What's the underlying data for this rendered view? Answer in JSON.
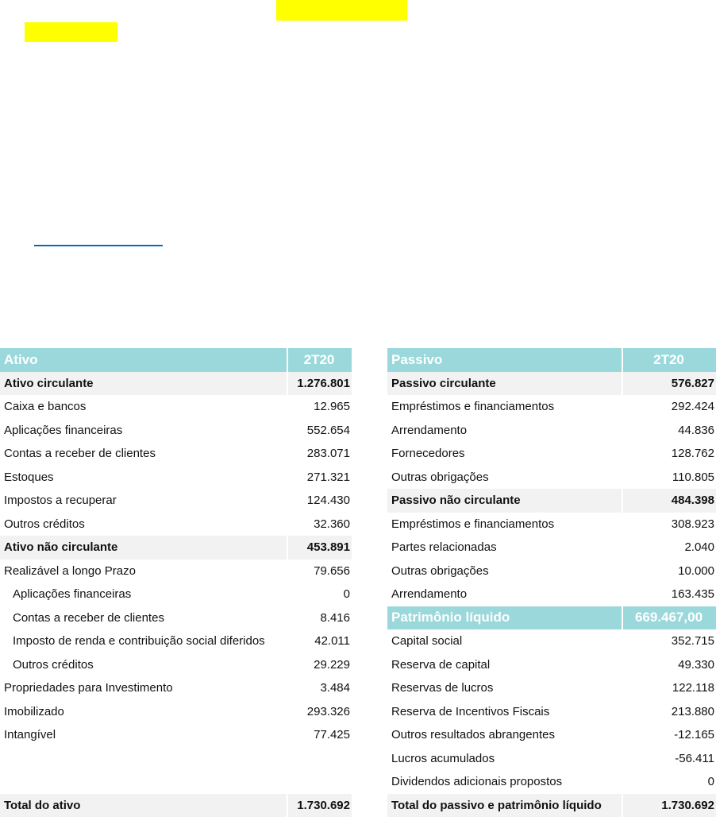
{
  "colors": {
    "header": "#9ad8db",
    "subtotal": "#f2f2f2",
    "highlight": "#ffff00",
    "link": "#0a6ab4"
  },
  "assets": {
    "header": {
      "label": "Ativo",
      "period": "2T20"
    },
    "rows": [
      {
        "label": "Ativo circulante",
        "value": "1.276.801",
        "type": "sub"
      },
      {
        "label": "Caixa e bancos",
        "value": "12.965",
        "type": "item"
      },
      {
        "label": "Aplicações financeiras",
        "value": "552.654",
        "type": "item"
      },
      {
        "label": "Contas a receber de clientes",
        "value": "283.071",
        "type": "item"
      },
      {
        "label": "Estoques",
        "value": "271.321",
        "type": "item"
      },
      {
        "label": "Impostos a recuperar",
        "value": "124.430",
        "type": "item"
      },
      {
        "label": "Outros créditos",
        "value": "32.360",
        "type": "item"
      },
      {
        "label": "Ativo não circulante",
        "value": "453.891",
        "type": "sub"
      },
      {
        "label": "Realizável a longo Prazo",
        "value": "79.656",
        "type": "item"
      },
      {
        "label": "Aplicações financeiras",
        "value": "0",
        "type": "indent"
      },
      {
        "label": "Contas a receber de clientes",
        "value": "8.416",
        "type": "indent"
      },
      {
        "label": "Imposto de renda e contribuição social diferidos",
        "value": "42.011",
        "type": "indent"
      },
      {
        "label": "Outros créditos",
        "value": "29.229",
        "type": "indent"
      },
      {
        "label": "Propriedades para Investimento",
        "value": "3.484",
        "type": "item"
      },
      {
        "label": "Imobilizado",
        "value": "293.326",
        "type": "item"
      },
      {
        "label": "Intangível",
        "value": "77.425",
        "type": "item"
      }
    ],
    "total": {
      "label": "Total do ativo",
      "value": "1.730.692"
    }
  },
  "liabilities": {
    "header": {
      "label": "Passivo",
      "period": "2T20"
    },
    "rows": [
      {
        "label": "Passivo circulante",
        "value": "576.827",
        "type": "sub"
      },
      {
        "label": "Empréstimos e financiamentos",
        "value": "292.424",
        "type": "item"
      },
      {
        "label": "Arrendamento",
        "value": "44.836",
        "type": "item"
      },
      {
        "label": "Fornecedores",
        "value": "128.762",
        "type": "item"
      },
      {
        "label": "Outras obrigações",
        "value": "110.805",
        "type": "item"
      },
      {
        "label": "Passivo não circulante",
        "value": "484.398",
        "type": "sub"
      },
      {
        "label": "Empréstimos e financiamentos",
        "value": "308.923",
        "type": "item"
      },
      {
        "label": "Partes relacionadas",
        "value": "2.040",
        "type": "item"
      },
      {
        "label": "Outras obrigações",
        "value": "10.000",
        "type": "item"
      },
      {
        "label": "Arrendamento",
        "value": "163.435",
        "type": "item"
      },
      {
        "label": "Patrimônio líquido",
        "value": "669.467,00",
        "type": "head"
      },
      {
        "label": "Capital social",
        "value": "352.715",
        "type": "item"
      },
      {
        "label": "Reserva de capital",
        "value": "49.330",
        "type": "item"
      },
      {
        "label": "Reservas de lucros",
        "value": "122.118",
        "type": "item"
      },
      {
        "label": "Reserva de Incentivos Fiscais",
        "value": "213.880",
        "type": "item"
      },
      {
        "label": "Outros resultados abrangentes",
        "value": "-12.165",
        "type": "item"
      },
      {
        "label": "Lucros acumulados",
        "value": "-56.411",
        "type": "item"
      },
      {
        "label": "Dividendos adicionais propostos",
        "value": "0",
        "type": "item"
      }
    ],
    "total": {
      "label": "Total do passivo e patrimônio líquido",
      "value": "1.730.692"
    }
  }
}
